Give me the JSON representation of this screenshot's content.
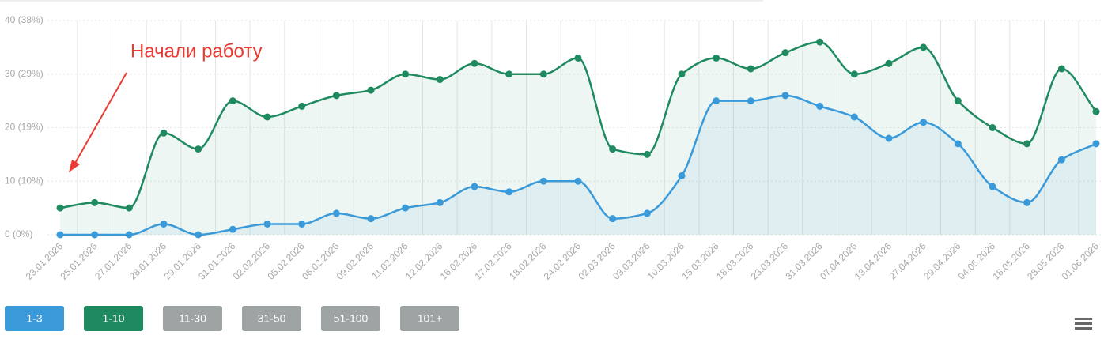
{
  "chart_data": {
    "type": "spline-area",
    "categories": [
      "23.01.2026",
      "25.01.2026",
      "27.01.2026",
      "28.01.2026",
      "29.01.2026",
      "31.01.2026",
      "02.02.2026",
      "05.02.2026",
      "06.02.2026",
      "09.02.2026",
      "11.02.2026",
      "12.02.2026",
      "16.02.2026",
      "17.02.2026",
      "18.02.2026",
      "24.02.2026",
      "02.03.2026",
      "03.03.2026",
      "10.03.2026",
      "15.03.2026",
      "18.03.2026",
      "23.03.2026",
      "31.03.2026",
      "07.04.2026",
      "13.04.2026",
      "27.04.2026",
      "29.04.2026",
      "04.05.2026",
      "18.05.2026",
      "28.05.2026",
      "01.06.2026"
    ],
    "series": [
      {
        "name": "1-10",
        "color": "#1f8a5f",
        "values": [
          5,
          6,
          5,
          19,
          16,
          25,
          22,
          24,
          26,
          27,
          30,
          29,
          32,
          30,
          30,
          33,
          16,
          15,
          30,
          33,
          31,
          34,
          36,
          30,
          32,
          35,
          25,
          20,
          17,
          31,
          23
        ]
      },
      {
        "name": "1-3",
        "color": "#3a9ad9",
        "values": [
          0,
          0,
          0,
          2,
          0,
          1,
          2,
          2,
          4,
          3,
          5,
          6,
          9,
          8,
          10,
          10,
          3,
          4,
          11,
          25,
          25,
          26,
          24,
          22,
          18,
          21,
          17,
          9,
          6,
          14,
          17
        ]
      }
    ],
    "ylim": [
      0,
      40
    ],
    "yticks": [
      {
        "value": 0,
        "label": "0 (0%)"
      },
      {
        "value": 10,
        "label": "10 (10%)"
      },
      {
        "value": 20,
        "label": "20 (19%)"
      },
      {
        "value": 30,
        "label": "30 (29%)"
      },
      {
        "value": 40,
        "label": "40 (38%)"
      }
    ],
    "grid": true,
    "annotation": "Начали работу",
    "buttons": [
      {
        "label": "1-3",
        "color": "#3a9ad9"
      },
      {
        "label": "1-10",
        "color": "#1f8a5f"
      },
      {
        "label": "11-30",
        "color": "#9ea3a3"
      },
      {
        "label": "31-50",
        "color": "#9ea3a3"
      },
      {
        "label": "51-100",
        "color": "#9ea3a3"
      },
      {
        "label": "101+",
        "color": "#9ea3a3"
      }
    ]
  }
}
